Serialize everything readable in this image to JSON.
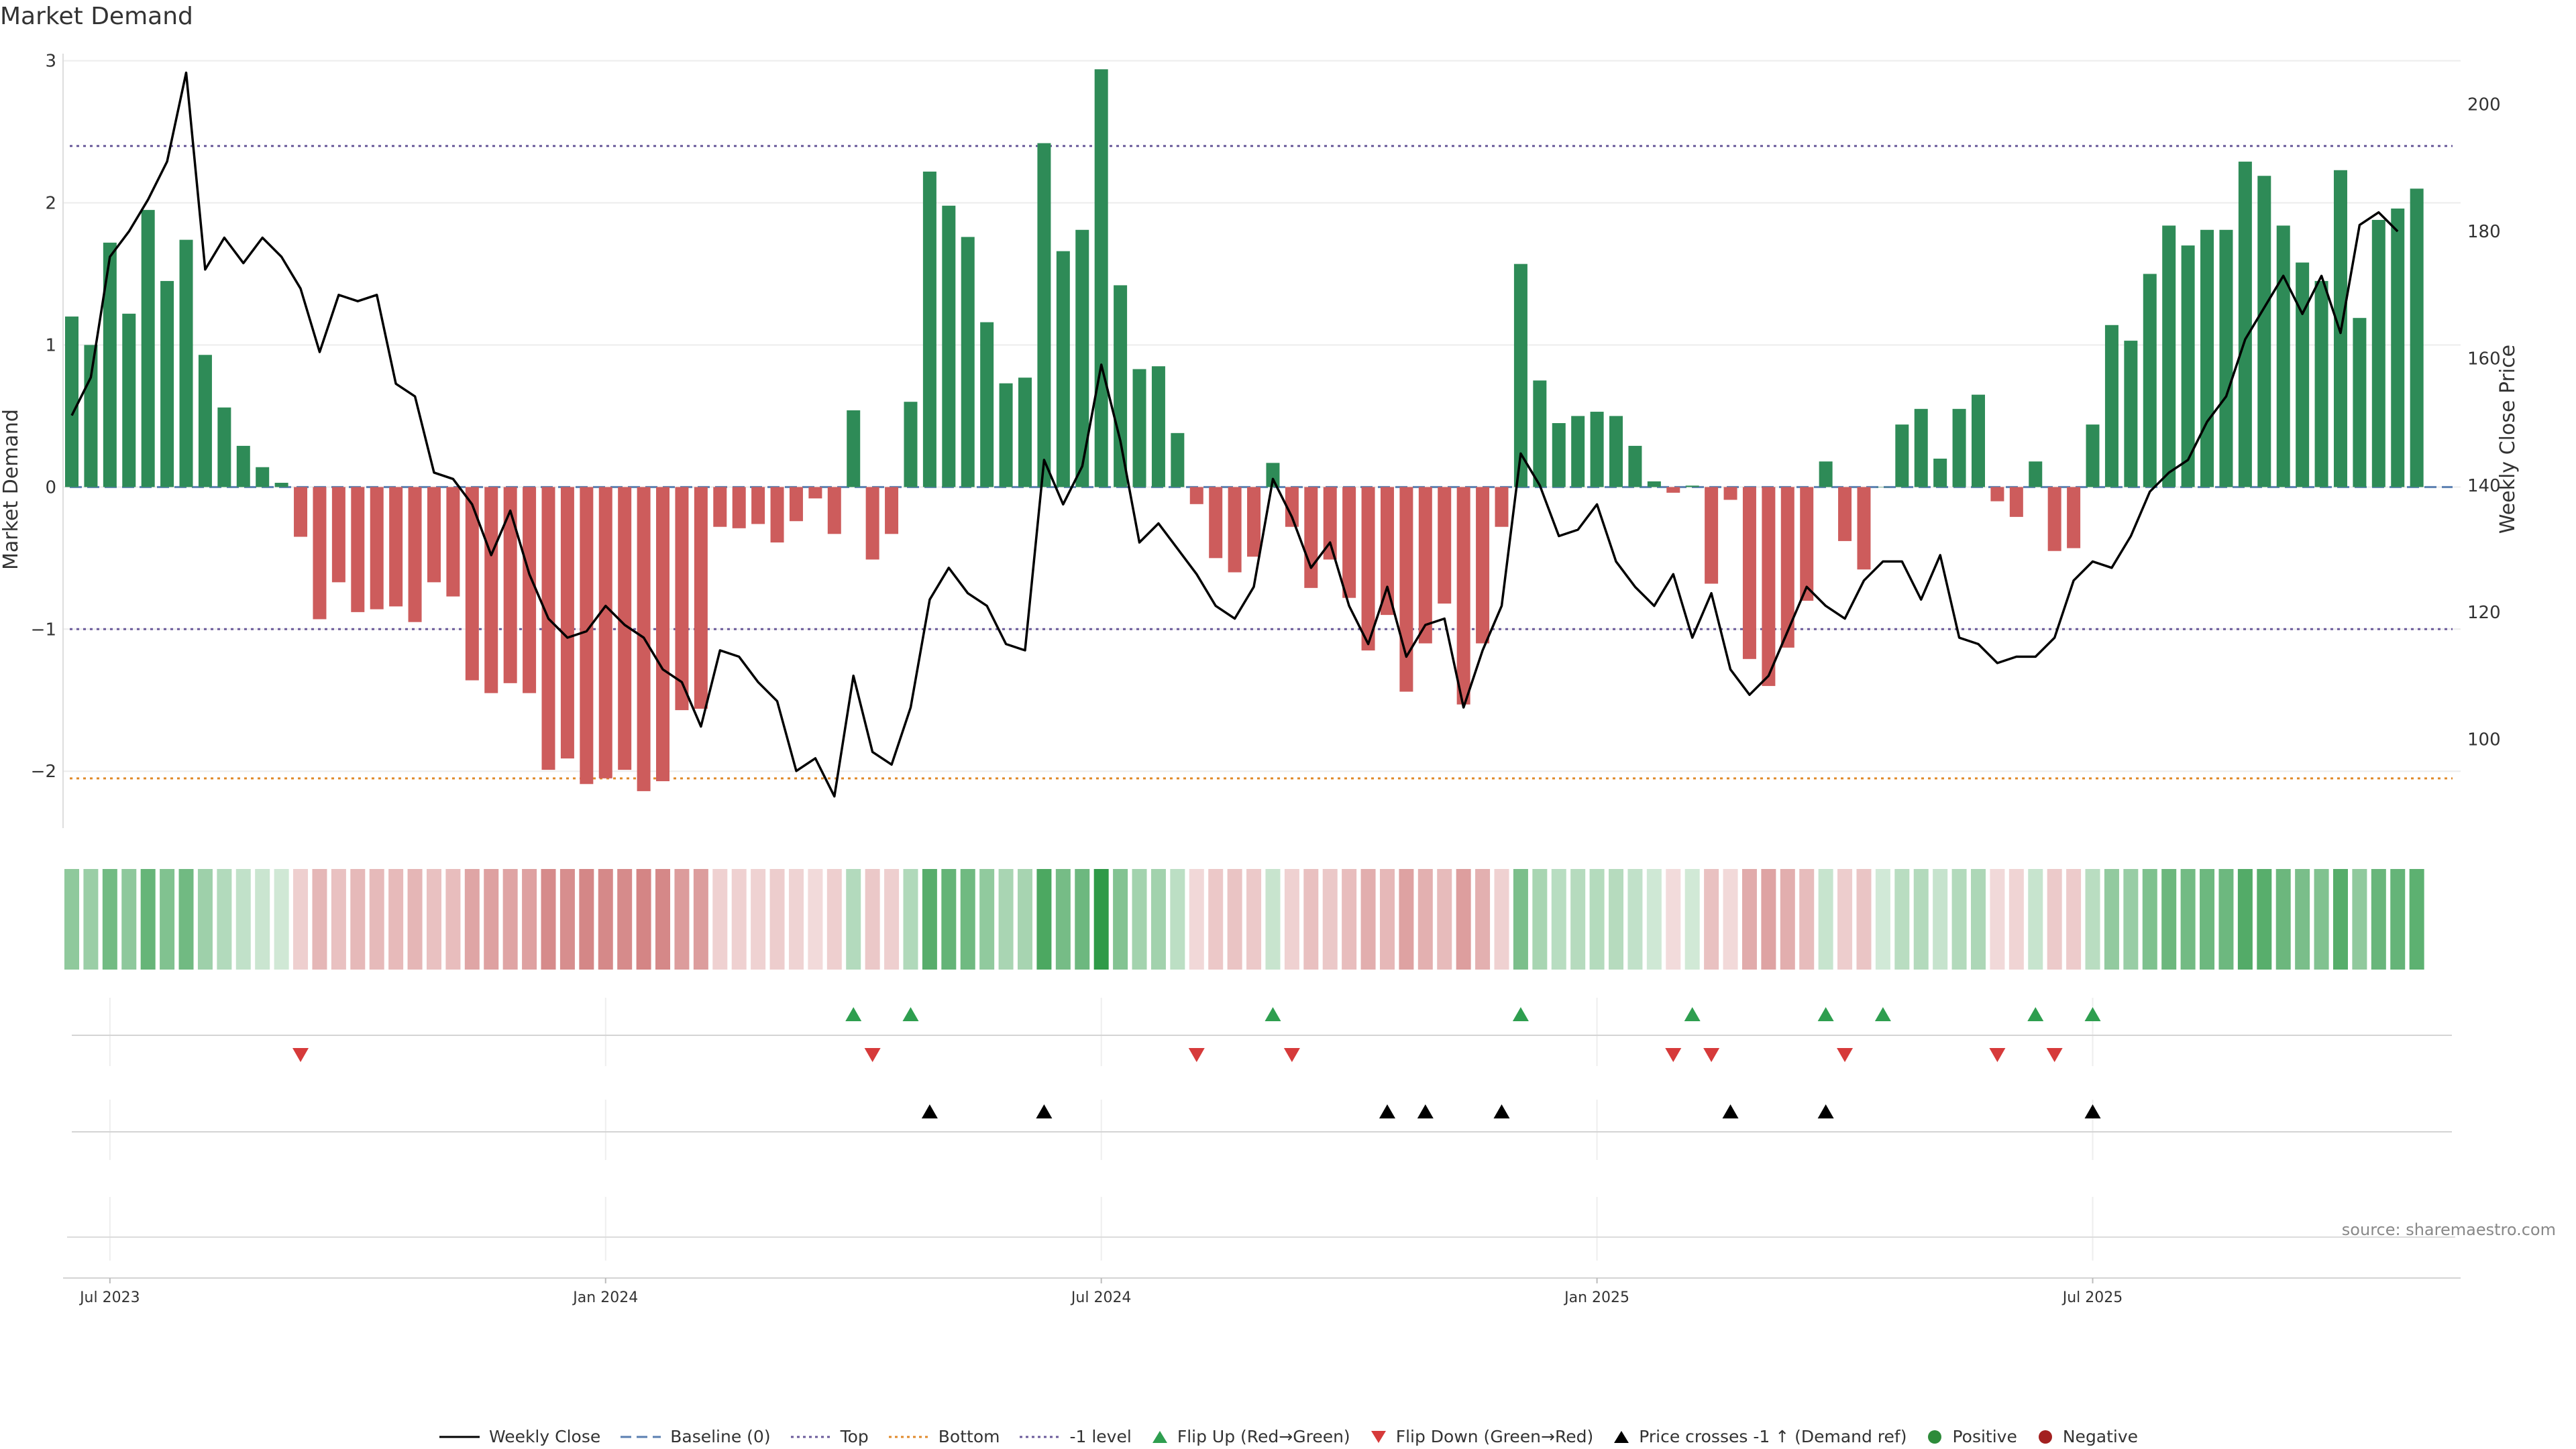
{
  "chart_data": {
    "type": "bar",
    "title": "Market Demand",
    "ylabel": "Market Demand",
    "y2label": "Weekly Close Price",
    "source": "source: sharemaestro.com",
    "ylim": [
      -2.4,
      3.05
    ],
    "y2lim": [
      86,
      208
    ],
    "yticks": [
      -2,
      -1,
      0,
      1,
      2,
      3
    ],
    "y2ticks": [
      100,
      120,
      140,
      160,
      180,
      200
    ],
    "xticks": [
      "Jul 2023",
      "Jan 2024",
      "Jul 2024",
      "Jan 2025",
      "Jul 2025"
    ],
    "xtick_index": [
      2,
      28,
      54,
      80,
      106
    ],
    "reference_lines": {
      "top": 2.4,
      "bottom": -2.05,
      "minus_one": -1.0,
      "baseline": 0
    },
    "demand": [
      1.2,
      1.0,
      1.72,
      1.22,
      1.95,
      1.45,
      1.74,
      0.93,
      0.56,
      0.29,
      0.14,
      0.03,
      -0.35,
      -0.93,
      -0.67,
      -0.88,
      -0.86,
      -0.84,
      -0.95,
      -0.67,
      -0.77,
      -1.36,
      -1.45,
      -1.38,
      -1.45,
      -1.99,
      -1.91,
      -2.09,
      -2.05,
      -1.99,
      -2.14,
      -2.07,
      -1.57,
      -1.56,
      -0.28,
      -0.29,
      -0.26,
      -0.39,
      -0.24,
      -0.08,
      -0.33,
      0.54,
      -0.51,
      -0.33,
      0.6,
      2.22,
      1.98,
      1.76,
      1.16,
      0.73,
      0.77,
      2.42,
      1.66,
      1.81,
      2.94,
      1.42,
      0.83,
      0.85,
      0.38,
      -0.12,
      -0.5,
      -0.6,
      -0.49,
      0.17,
      -0.28,
      -0.71,
      -0.51,
      -0.78,
      -1.15,
      -0.9,
      -1.44,
      -1.1,
      -0.82,
      -1.53,
      -1.1,
      -0.28,
      1.57,
      0.75,
      0.45,
      0.5,
      0.53,
      0.5,
      0.29,
      0.04,
      -0.04,
      0.01,
      -0.68,
      -0.09,
      -1.21,
      -1.4,
      -1.13,
      -0.8,
      0.18,
      -0.38,
      -0.58,
      0.0,
      0.44,
      0.55,
      0.2,
      0.55,
      0.65,
      -0.1,
      -0.21,
      0.18,
      -0.45,
      -0.43,
      0.44,
      1.14,
      1.03,
      1.5,
      1.84,
      1.7,
      1.81,
      1.81,
      2.29,
      2.19,
      1.84,
      1.58,
      1.45,
      2.23,
      1.19,
      1.88,
      1.96,
      2.1
    ],
    "weekly_close": [
      151,
      157,
      176,
      180,
      185,
      191,
      205,
      174,
      179,
      175,
      179,
      176,
      171,
      161,
      170,
      169,
      170,
      156,
      154,
      142,
      141,
      137,
      129,
      136,
      126,
      119,
      116,
      117,
      121,
      118,
      116,
      111,
      109,
      102,
      114,
      113,
      109,
      106,
      95,
      97,
      91,
      110,
      98,
      96,
      105,
      122,
      127,
      123,
      121,
      115,
      114,
      144,
      137,
      143,
      159,
      147,
      131,
      134,
      130,
      126,
      121,
      119,
      124,
      141,
      135,
      127,
      131,
      121,
      115,
      124,
      113,
      118,
      119,
      105,
      114,
      121,
      145,
      140,
      132,
      133,
      137,
      128,
      124,
      121,
      126,
      116,
      123,
      111,
      107,
      110,
      117,
      124,
      121,
      119,
      125,
      128,
      128,
      122,
      129,
      116,
      115,
      112,
      113,
      113,
      116,
      125,
      128,
      127,
      132,
      139,
      142,
      144,
      150,
      154,
      163,
      168,
      173,
      167,
      173,
      164,
      181,
      183,
      180
    ],
    "flip_up": [
      41,
      44,
      63,
      76,
      85,
      92,
      95,
      103,
      106
    ],
    "flip_down": [
      12,
      42,
      59,
      64,
      84,
      86,
      93,
      101,
      104
    ],
    "price_cross": [
      45,
      51,
      69,
      71,
      75,
      87,
      92,
      106
    ]
  },
  "legend": [
    {
      "label": "Weekly Close",
      "kind": "line",
      "color": "#000000"
    },
    {
      "label": "Baseline (0)",
      "kind": "dash",
      "color": "#5a7fb0"
    },
    {
      "label": "Top",
      "kind": "dot",
      "color": "#6a5a9a"
    },
    {
      "label": "Bottom",
      "kind": "dot",
      "color": "#e08a2a"
    },
    {
      "label": "-1 level",
      "kind": "dot",
      "color": "#6a5a9a"
    },
    {
      "label": "Flip Up (Red→Green)",
      "kind": "tri-up",
      "color": "#2e9e4f"
    },
    {
      "label": "Flip Down (Green→Red)",
      "kind": "tri-down",
      "color": "#d63a3a"
    },
    {
      "label": "Price crosses -1 ↑ (Demand ref)",
      "kind": "tri-up",
      "color": "#000000"
    },
    {
      "label": "Positive",
      "kind": "circle",
      "color": "#2e8b3a"
    },
    {
      "label": "Negative",
      "kind": "circle",
      "color": "#a32020"
    }
  ],
  "colors": {
    "positive": "#2e8b57",
    "negative": "#cd5c5c",
    "heat_positive": "#2f9a48",
    "heat_negative": "#c86464"
  }
}
